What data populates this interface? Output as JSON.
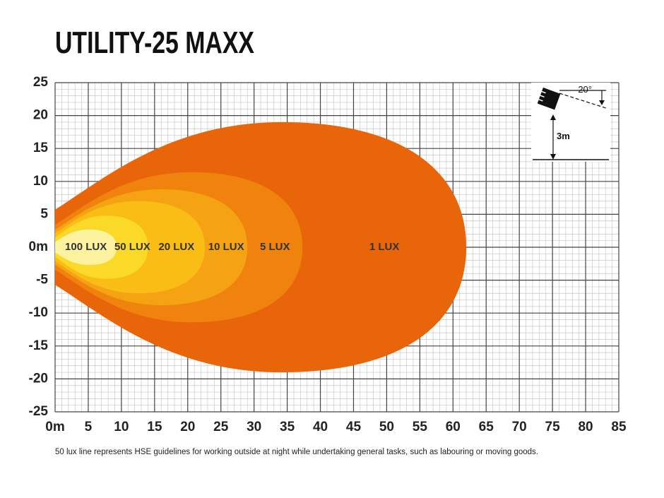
{
  "chart_data": {
    "type": "beam-pattern",
    "title": "UTILITY-25 MAXX",
    "footnote": "50 lux line represents HSE guidelines for working outside at night while undertaking general tasks, such as labouring or moving goods.",
    "inset": {
      "angle": "20°",
      "height": "3m"
    },
    "xlim": [
      0,
      85
    ],
    "ylim": [
      -25,
      25
    ],
    "xticks": [
      {
        "value": 0,
        "label": "0m"
      },
      5,
      10,
      15,
      20,
      25,
      30,
      35,
      40,
      45,
      50,
      55,
      60,
      65,
      70,
      75,
      80,
      85
    ],
    "yticks": [
      -25,
      -20,
      -15,
      -10,
      -5,
      {
        "value": 0,
        "label": "0m"
      },
      5,
      10,
      15,
      20,
      25
    ],
    "grid": true,
    "series": [
      {
        "name": "1 LUX",
        "color": "#e8650a",
        "reach": 62,
        "half_width": 19
      },
      {
        "name": "5 LUX",
        "color": "#f0830e",
        "reach": 37.3,
        "half_width": 11.4
      },
      {
        "name": "10 LUX",
        "color": "#f5a313",
        "reach": 29,
        "half_width": 8.8
      },
      {
        "name": "20 LUX",
        "color": "#f9bd16",
        "reach": 22.6,
        "half_width": 7
      },
      {
        "name": "50 LUX",
        "color": "#fbd928",
        "reach": 14,
        "half_width": 4.8
      },
      {
        "name": "100 LUX",
        "color": "#fdf2a0",
        "reach": 9.3,
        "half_width": 2.7
      }
    ]
  }
}
